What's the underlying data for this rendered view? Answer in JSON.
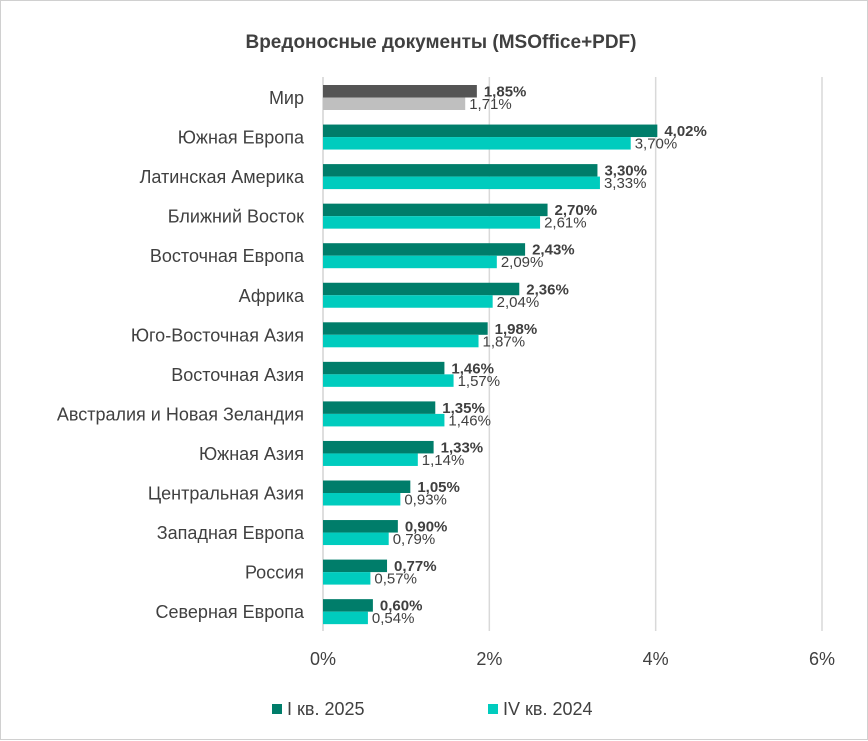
{
  "chart_data": {
    "type": "bar",
    "orientation": "horizontal",
    "title": "Вредоносные документы (MSOffice+PDF)",
    "categories": [
      "Мир",
      "Южная Европа",
      "Латинская Америка",
      "Ближний Восток",
      "Восточная Европа",
      "Африка",
      "Юго-Восточная Азия",
      "Восточная Азия",
      "Австралия и Новая Зеландия",
      "Южная Азия",
      "Центральная Азия",
      "Западная Европа",
      "Россия",
      "Северная Европа"
    ],
    "series": [
      {
        "name": "I кв. 2025",
        "color": "#007D6A",
        "highlight_color": "#555555",
        "values": [
          1.85,
          4.02,
          3.3,
          2.7,
          2.43,
          2.36,
          1.98,
          1.46,
          1.35,
          1.33,
          1.05,
          0.9,
          0.77,
          0.6
        ],
        "labels": [
          "1,85%",
          "4,02%",
          "3,30%",
          "2,70%",
          "2,43%",
          "2,36%",
          "1,98%",
          "1,46%",
          "1,35%",
          "1,33%",
          "1,05%",
          "0,90%",
          "0,77%",
          "0,60%"
        ]
      },
      {
        "name": "IV кв. 2024",
        "color": "#00CCBE",
        "highlight_color": "#BFBFBF",
        "values": [
          1.71,
          3.7,
          3.33,
          2.61,
          2.09,
          2.04,
          1.87,
          1.57,
          1.46,
          1.14,
          0.93,
          0.79,
          0.57,
          0.54
        ],
        "labels": [
          "1,71%",
          "3,70%",
          "3,33%",
          "2,61%",
          "2,09%",
          "2,04%",
          "1,87%",
          "1,57%",
          "1,46%",
          "1,14%",
          "0,93%",
          "0,79%",
          "0,57%",
          "0,54%"
        ]
      }
    ],
    "xlim": [
      0,
      6
    ],
    "xticks": [
      0,
      2,
      4,
      6
    ],
    "xtick_labels": [
      "0%",
      "2%",
      "4%",
      "6%"
    ],
    "grid": true,
    "legend_position": "bottom"
  }
}
